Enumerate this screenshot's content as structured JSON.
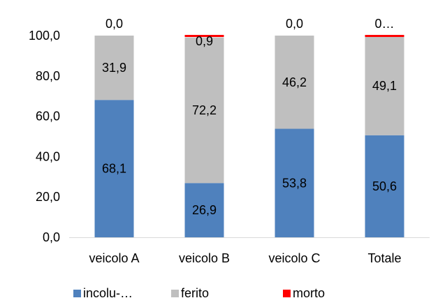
{
  "chart_data": {
    "type": "bar",
    "stacked": true,
    "categories": [
      "veicolo A",
      "veicolo B",
      "veicolo C",
      "Totale"
    ],
    "series": [
      {
        "name": "incolu-…",
        "color": "#4f81bd",
        "values": [
          68.1,
          26.9,
          53.8,
          50.6
        ],
        "labels": [
          "68,1",
          "26,9",
          "53,8",
          "50,6"
        ]
      },
      {
        "name": "ferito",
        "color": "#bfbfbf",
        "values": [
          31.9,
          72.2,
          46.2,
          49.1
        ],
        "labels": [
          "31,9",
          "72,2",
          "46,2",
          "49,1"
        ]
      },
      {
        "name": "morto",
        "color": "#ff0000",
        "values": [
          0.0,
          0.9,
          0.0,
          0.3
        ],
        "labels": [
          "0,0",
          "0,9",
          "0,0",
          "0…"
        ]
      }
    ],
    "ylim": [
      0,
      100
    ],
    "yticks": [
      "0,0",
      "20,0",
      "40,0",
      "60,0",
      "80,0",
      "100,0"
    ],
    "grid": false,
    "legend_position": "bottom"
  }
}
